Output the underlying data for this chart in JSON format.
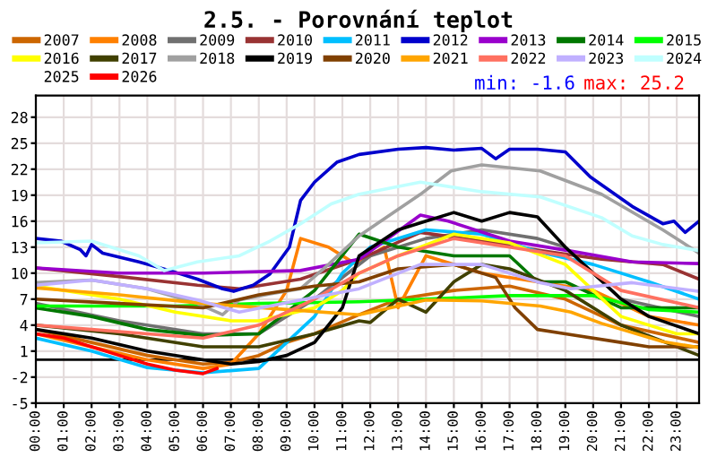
{
  "chart_data": {
    "type": "line",
    "title": "2.5. - Porovnání teplot",
    "annotations": [
      "min: -1.6",
      "max: 25.2"
    ],
    "xlim": [
      0,
      23.8
    ],
    "xticks": [
      {
        "value": 0,
        "label": "00:00"
      },
      {
        "value": 1,
        "label": "01:00"
      },
      {
        "value": 2,
        "label": "02:00"
      },
      {
        "value": 3,
        "label": "03:00"
      },
      {
        "value": 4,
        "label": "04:00"
      },
      {
        "value": 5,
        "label": "05:00"
      },
      {
        "value": 6,
        "label": "06:00"
      },
      {
        "value": 7,
        "label": "07:00"
      },
      {
        "value": 8,
        "label": "08:00"
      },
      {
        "value": 9,
        "label": "09:00"
      },
      {
        "value": 10,
        "label": "10:00"
      },
      {
        "value": 11,
        "label": "11:00"
      },
      {
        "value": 12,
        "label": "12:00"
      },
      {
        "value": 13,
        "label": "13:00"
      },
      {
        "value": 14,
        "label": "14:00"
      },
      {
        "value": 15,
        "label": "15:00"
      },
      {
        "value": 16,
        "label": "16:00"
      },
      {
        "value": 17,
        "label": "17:00"
      },
      {
        "value": 18,
        "label": "18:00"
      },
      {
        "value": 19,
        "label": "19:00"
      },
      {
        "value": 20,
        "label": "20:00"
      },
      {
        "value": 21,
        "label": "21:00"
      },
      {
        "value": 22,
        "label": "22:00"
      },
      {
        "value": 23,
        "label": "23:00"
      }
    ],
    "ylim": [
      -5,
      30.5
    ],
    "yticks": [
      -5,
      -2,
      1,
      4,
      7,
      10,
      13,
      16,
      19,
      22,
      25,
      28
    ],
    "grid": true,
    "legend": "top",
    "marker": "none",
    "line_style": "solid",
    "ref_lines": [
      {
        "axis": "y",
        "value": 0,
        "color": "#000000"
      }
    ],
    "series": [
      {
        "name": "2007",
        "color": "#cc6600",
        "x": [
          0,
          2,
          4,
          6,
          7,
          8,
          9,
          10,
          11.6,
          13,
          15,
          17,
          19,
          21,
          23.8
        ],
        "values": [
          3.5,
          2,
          0.5,
          -0.5,
          -0.3,
          0.5,
          2,
          3,
          5.2,
          7,
          8,
          8.5,
          7,
          4,
          2
        ]
      },
      {
        "name": "2008",
        "color": "#ff8000",
        "x": [
          0,
          2,
          4,
          6,
          7,
          8,
          9,
          9.5,
          10.5,
          11.5,
          12.5,
          13,
          14,
          16,
          18,
          20,
          22,
          23.8
        ],
        "values": [
          3,
          1.5,
          0,
          -1,
          -0.5,
          3,
          8,
          14,
          13,
          11,
          13,
          6,
          12,
          10,
          9,
          8,
          5,
          4
        ]
      },
      {
        "name": "2009",
        "color": "#707070",
        "x": [
          0,
          3,
          6,
          8,
          10,
          12,
          14,
          16,
          18,
          19,
          21,
          23.8
        ],
        "values": [
          6.5,
          4.5,
          3,
          3,
          7,
          12,
          14,
          15,
          14,
          13,
          7,
          5
        ]
      },
      {
        "name": "2010",
        "color": "#993333",
        "x": [
          0,
          3,
          5.8,
          7.3,
          9.5,
          11.6,
          13.8,
          16,
          18.1,
          20.3,
          22.5,
          23.8
        ],
        "values": [
          10.6,
          9.6,
          8.6,
          8.2,
          9.3,
          11.6,
          14.7,
          13.7,
          12.6,
          11.6,
          11,
          9.3
        ]
      },
      {
        "name": "2011",
        "color": "#00bfff",
        "x": [
          0,
          2,
          4,
          6,
          8,
          9,
          10,
          11,
          12,
          14,
          16,
          18,
          20,
          22,
          23.8
        ],
        "values": [
          2.5,
          1,
          -0.9,
          -1.5,
          -1,
          2,
          5,
          10,
          13,
          15,
          14.5,
          12.5,
          11,
          9,
          7
        ]
      },
      {
        "name": "2012",
        "color": "#0000cc",
        "x": [
          0,
          0.9,
          1.6,
          1.8,
          2,
          2.4,
          3.7,
          4.8,
          5.8,
          6.7,
          7.1,
          7.8,
          8.4,
          9.1,
          9.5,
          10,
          10.8,
          11.6,
          13,
          14,
          15,
          16,
          16.5,
          17,
          18,
          19,
          19.9,
          21.4,
          22.5,
          22.9,
          23.3,
          23.8
        ],
        "values": [
          14,
          13.7,
          12.7,
          12,
          13.3,
          12.3,
          11.3,
          10.3,
          9.3,
          8.2,
          7.9,
          8.6,
          9.9,
          13,
          18.4,
          20.5,
          22.8,
          23.7,
          24.3,
          24.5,
          24.2,
          24.4,
          23.2,
          24.3,
          24.3,
          24,
          21.1,
          17.7,
          15.7,
          16,
          14.7,
          16
        ]
      },
      {
        "name": "2013",
        "color": "#9900cc",
        "x": [
          0,
          3,
          6,
          9.5,
          11.6,
          13.8,
          14.8,
          17,
          19.1,
          21.4,
          23.8
        ],
        "values": [
          10.6,
          10,
          10,
          10.3,
          11.6,
          16.7,
          16,
          13.7,
          12.6,
          11.3,
          11.1
        ]
      },
      {
        "name": "2014",
        "color": "#007700",
        "x": [
          0,
          2,
          4,
          6,
          8,
          10,
          11.6,
          13,
          15,
          17,
          18,
          19,
          21,
          23.8
        ],
        "values": [
          6,
          5,
          3.5,
          2.8,
          3,
          8,
          14.5,
          13,
          12,
          12,
          9,
          9,
          6,
          6
        ]
      },
      {
        "name": "2015",
        "color": "#00ff00",
        "x": [
          0,
          5,
          8,
          11.6,
          14,
          17,
          20,
          22,
          23.8
        ],
        "values": [
          6.2,
          6.2,
          6.5,
          6.7,
          7,
          7.4,
          7.4,
          5.8,
          5.5
        ]
      },
      {
        "name": "2016",
        "color": "#ffff00",
        "x": [
          0,
          3,
          5,
          7,
          8,
          10,
          11,
          11.6,
          13,
          15,
          17,
          19,
          21,
          23,
          23.8
        ],
        "values": [
          8.5,
          7,
          5.5,
          4.5,
          4.5,
          6,
          8,
          10,
          12,
          14.5,
          13.5,
          11,
          5,
          3,
          3
        ]
      },
      {
        "name": "2017",
        "color": "#404000",
        "x": [
          0,
          3,
          6,
          8,
          10,
          11.6,
          12,
          13,
          14,
          15,
          16,
          17,
          19,
          21,
          23.8
        ],
        "values": [
          4,
          3,
          1.5,
          1.5,
          3,
          4.5,
          4.3,
          7,
          5.5,
          9,
          11,
          10.5,
          8,
          4,
          0.5
        ]
      },
      {
        "name": "2018",
        "color": "#a0a0a0",
        "x": [
          0,
          2,
          4,
          5.8,
          6.7,
          7.3,
          8.4,
          9.5,
          10.5,
          11.6,
          13.8,
          14.9,
          16,
          18.1,
          20.3,
          22.5,
          23.8
        ],
        "values": [
          8.9,
          9.2,
          8.2,
          6.5,
          5.2,
          6.9,
          7.6,
          8.2,
          11,
          14.3,
          19.1,
          21.8,
          22.5,
          21.8,
          19.1,
          15,
          12.3
        ]
      },
      {
        "name": "2019",
        "color": "#000000",
        "x": [
          0,
          2,
          4,
          6,
          7,
          8,
          9,
          10,
          11,
          11.6,
          13,
          14,
          15,
          16,
          17,
          18,
          19,
          20,
          21,
          22,
          23.8
        ],
        "values": [
          3.5,
          2.5,
          1,
          0,
          -0.5,
          -0.2,
          0.5,
          2,
          6,
          12,
          15,
          16,
          17,
          16,
          17,
          16.5,
          13,
          10,
          7,
          5,
          3
        ]
      },
      {
        "name": "2020",
        "color": "#804000",
        "x": [
          0,
          3,
          6,
          8,
          10,
          11.6,
          13,
          15,
          16.5,
          17.2,
          18,
          19,
          21,
          22,
          23.8
        ],
        "values": [
          7,
          6.5,
          6,
          7.5,
          8.5,
          9,
          10.5,
          11,
          9.5,
          6,
          3.5,
          3,
          2,
          1.5,
          1.5
        ]
      },
      {
        "name": "2021",
        "color": "#ffa500",
        "x": [
          0,
          3,
          6,
          9,
          11.6,
          14,
          16,
          18.1,
          19.2,
          20.3,
          22.5,
          23.8
        ],
        "values": [
          8.3,
          7.5,
          6.5,
          5.8,
          5.2,
          6.9,
          6.8,
          6.2,
          5.5,
          4.2,
          2.1,
          1.4
        ]
      },
      {
        "name": "2022",
        "color": "#ff7060",
        "x": [
          0,
          2,
          4,
          6,
          8,
          10,
          11.6,
          13,
          15,
          17,
          19,
          21,
          23.8
        ],
        "values": [
          4,
          3.5,
          3,
          2.5,
          4,
          7,
          10,
          12,
          14,
          13,
          12,
          8,
          6
        ]
      },
      {
        "name": "2023",
        "color": "#c0b0ff",
        "x": [
          0,
          2,
          4,
          5.8,
          7.3,
          9.5,
          11.6,
          13.8,
          16,
          18.1,
          19.2,
          21.4,
          23.8
        ],
        "values": [
          8.6,
          9.2,
          8.2,
          6.9,
          5.5,
          6.9,
          8.2,
          11,
          11,
          8.9,
          8.2,
          8.9,
          7.9
        ]
      },
      {
        "name": "2024",
        "color": "#c0ffff",
        "x": [
          0,
          2,
          3.7,
          4.6,
          5.8,
          7.3,
          8.4,
          9.5,
          10.6,
          11.6,
          13.8,
          16,
          18.1,
          20.3,
          21.4,
          22.5,
          23.8
        ],
        "values": [
          13.5,
          13.7,
          12,
          10.3,
          11.3,
          12,
          13.7,
          15.7,
          18,
          19.1,
          20.5,
          19.4,
          18.8,
          16.4,
          14.3,
          13.3,
          12.6
        ]
      },
      {
        "name": "2025"
      },
      {
        "name": "2026",
        "color": "#ff0000",
        "x": [
          0,
          1,
          2,
          3,
          4,
          5,
          6,
          6.5
        ],
        "values": [
          3,
          2.5,
          1.5,
          0.5,
          -0.5,
          -1.2,
          -1.6,
          -1.0
        ]
      }
    ]
  }
}
